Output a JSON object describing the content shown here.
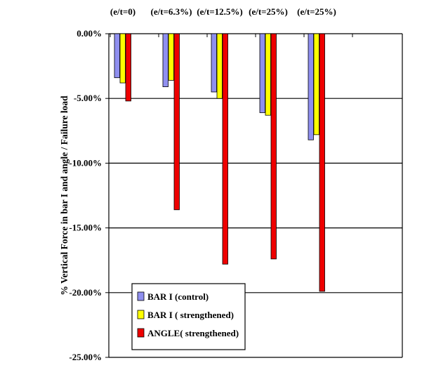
{
  "chart_data": {
    "type": "bar",
    "title": "",
    "xlabel": "",
    "ylabel": "% Vertical Force in bar I and angle / Failure load",
    "categories": [
      "(e/t=0)",
      "(e/t=6.3%)",
      "(e/t=12.5%)",
      "(e/t=25%)",
      "(e/t=25%)"
    ],
    "category_labels_position": "top",
    "ylim": [
      -25,
      0
    ],
    "yticks": [
      0,
      -5,
      -10,
      -15,
      -20,
      -25
    ],
    "ytick_labels": [
      "0.00%",
      "-5.00%",
      "-10.00%",
      "-15.00%",
      "-20.00%",
      "-25.00%"
    ],
    "grid": "horizontal",
    "legend_position": "bottom-left",
    "series": [
      {
        "name": "BAR I (control)",
        "color": "#8f8fef",
        "values": [
          -3.4,
          -4.1,
          -4.5,
          -6.1,
          -8.2
        ]
      },
      {
        "name": "BAR I ( strengthened)",
        "color": "#ffff00",
        "values": [
          -3.8,
          -3.6,
          -5.0,
          -6.3,
          -7.8
        ]
      },
      {
        "name": "ANGLE( strengthened)",
        "color": "#ee0000",
        "values": [
          -5.2,
          -13.6,
          -17.8,
          -17.4,
          -19.9
        ]
      }
    ]
  }
}
